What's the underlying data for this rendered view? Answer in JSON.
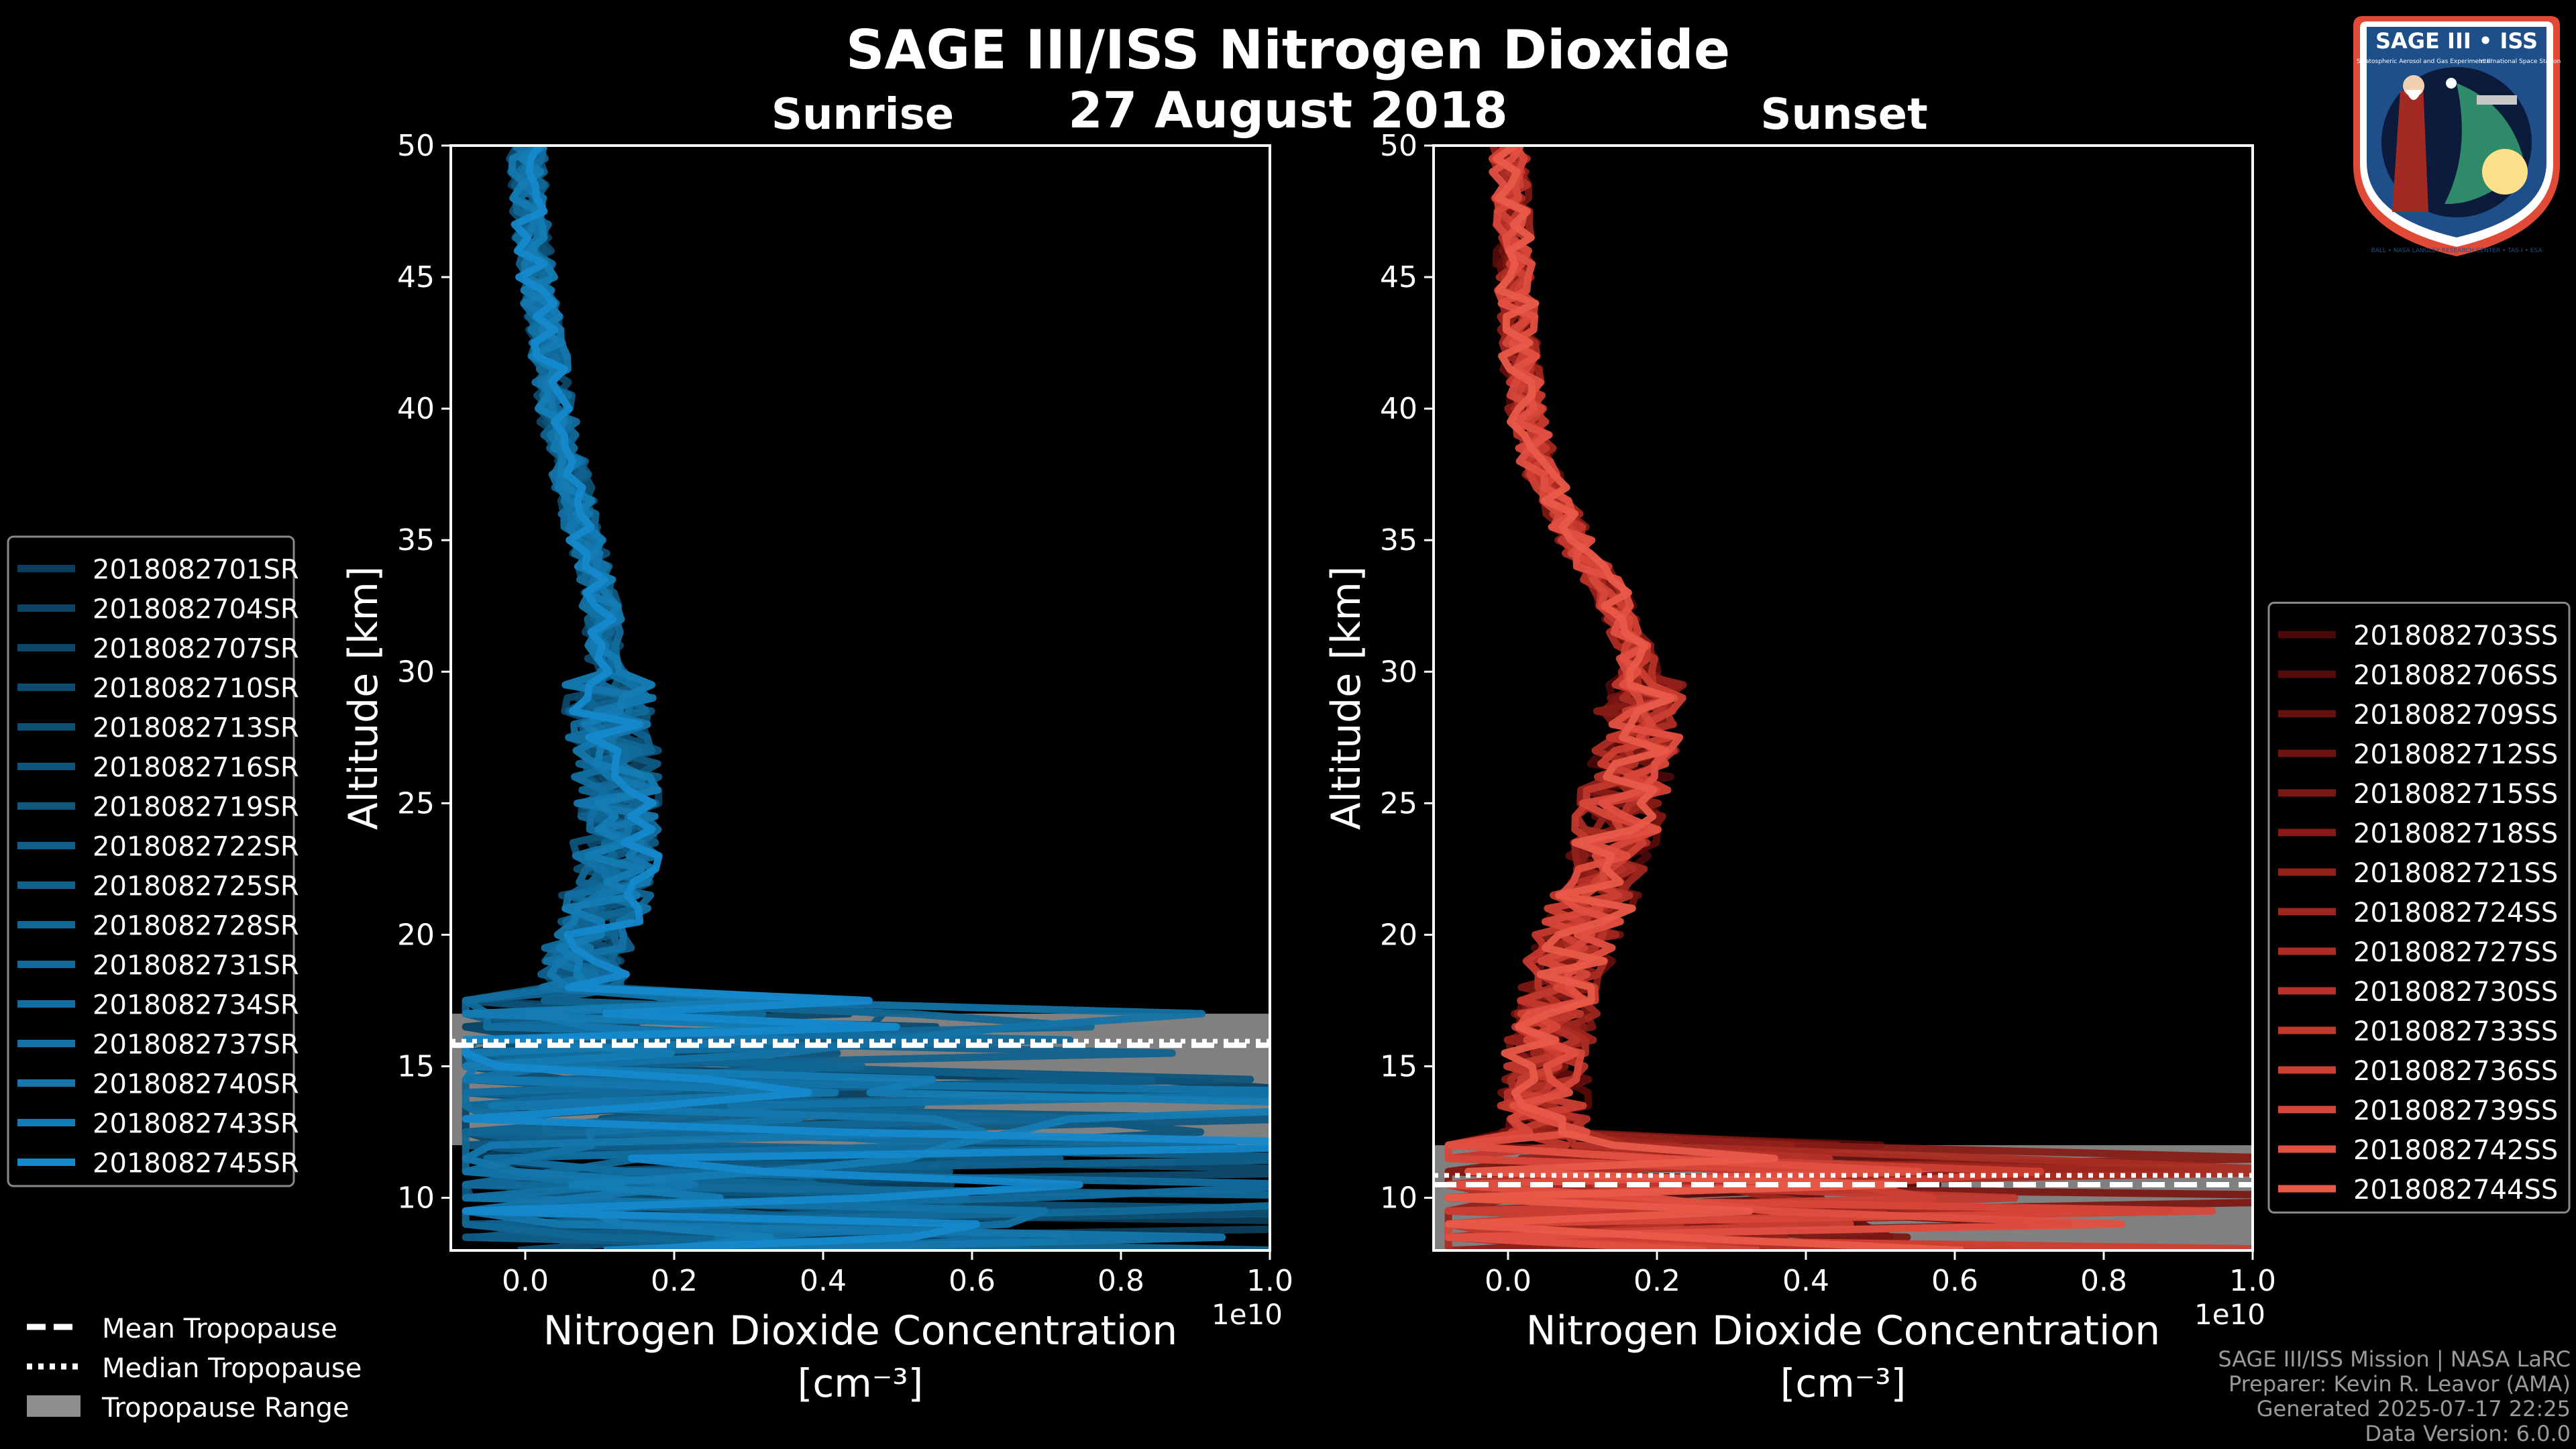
{
  "figure": {
    "title": "SAGE III/ISS Nitrogen Dioxide",
    "date": "27 August 2018"
  },
  "colors": {
    "sunrise_dark": "#0b3e5c",
    "sunrise_light": "#1589cc",
    "sunset_dark": "#4a0808",
    "sunset_light": "#e85a48",
    "tropopause_fill": "#8e8e8e"
  },
  "chart_data": [
    {
      "type": "line",
      "panel": "left",
      "subtitle": "Sunrise",
      "xlabel": "Nitrogen Dioxide Concentration",
      "xlabel_unit": "[cm⁻³]",
      "ylabel": "Altitude [km]",
      "x_offset_label": "1e10",
      "xlim": [
        -0.1,
        1.0
      ],
      "ylim": [
        8,
        50
      ],
      "xticks": [
        0.0,
        0.2,
        0.4,
        0.6,
        0.8,
        1.0
      ],
      "xtick_labels": [
        "0.0",
        "0.2",
        "0.4",
        "0.6",
        "0.8",
        "1.0"
      ],
      "yticks": [
        10,
        15,
        20,
        25,
        30,
        35,
        40,
        45,
        50
      ],
      "tropopause": {
        "mean_km": 15.8,
        "median_km": 15.8,
        "range_km": [
          12.0,
          17.0
        ]
      },
      "profile_altitude_km": [
        8.5,
        9,
        10,
        11,
        12,
        13,
        14,
        15,
        16,
        17,
        18,
        19,
        20,
        21,
        22,
        23,
        24,
        25,
        26,
        27,
        28,
        29,
        30,
        31,
        32,
        33,
        34,
        35,
        36,
        37,
        38,
        39,
        40,
        41,
        42,
        43,
        44,
        45,
        46,
        47,
        48,
        49,
        50
      ],
      "mean_profile_1e10": [
        0.3,
        0.25,
        0.2,
        0.18,
        0.16,
        0.14,
        0.12,
        0.1,
        0.08,
        0.09,
        0.1,
        0.1,
        0.11,
        0.13,
        0.14,
        0.15,
        0.15,
        0.15,
        0.15,
        0.15,
        0.14,
        0.14,
        0.14,
        0.13,
        0.13,
        0.12,
        0.11,
        0.1,
        0.09,
        0.08,
        0.07,
        0.06,
        0.05,
        0.045,
        0.04,
        0.03,
        0.025,
        0.02,
        0.015,
        0.01,
        0.008,
        0.005,
        0.004
      ],
      "series": [
        {
          "name": "2018082701SR",
          "color": "#0b3e5c"
        },
        {
          "name": "2018082704SR",
          "color": "#0c4262"
        },
        {
          "name": "2018082707SR",
          "color": "#0c4768"
        },
        {
          "name": "2018082710SR",
          "color": "#0d4b6f"
        },
        {
          "name": "2018082713SR",
          "color": "#0e5075"
        },
        {
          "name": "2018082716SR",
          "color": "#0e547b"
        },
        {
          "name": "2018082719SR",
          "color": "#0f5881"
        },
        {
          "name": "2018082722SR",
          "color": "#105d87"
        },
        {
          "name": "2018082725SR",
          "color": "#10618e"
        },
        {
          "name": "2018082728SR",
          "color": "#116694"
        },
        {
          "name": "2018082731SR",
          "color": "#126a9a"
        },
        {
          "name": "2018082734SR",
          "color": "#126ea0"
        },
        {
          "name": "2018082737SR",
          "color": "#1373a6"
        },
        {
          "name": "2018082740SR",
          "color": "#1477ad"
        },
        {
          "name": "2018082743SR",
          "color": "#147cb3"
        },
        {
          "name": "2018082745SR",
          "color": "#1589cc"
        }
      ]
    },
    {
      "type": "line",
      "panel": "right",
      "subtitle": "Sunset",
      "xlabel": "Nitrogen Dioxide Concentration",
      "xlabel_unit": "[cm⁻³]",
      "ylabel": "Altitude [km]",
      "x_offset_label": "1e10",
      "xlim": [
        -0.1,
        1.0
      ],
      "ylim": [
        8,
        50
      ],
      "xticks": [
        0.0,
        0.2,
        0.4,
        0.6,
        0.8,
        1.0
      ],
      "xtick_labels": [
        "0.0",
        "0.2",
        "0.4",
        "0.6",
        "0.8",
        "1.0"
      ],
      "yticks": [
        10,
        15,
        20,
        25,
        30,
        35,
        40,
        45,
        50
      ],
      "tropopause": {
        "mean_km": 10.5,
        "median_km": 10.7,
        "range_km": [
          8.0,
          12.0
        ]
      },
      "profile_altitude_km": [
        8.5,
        9,
        10,
        11,
        12,
        13,
        14,
        15,
        16,
        17,
        18,
        19,
        20,
        21,
        22,
        23,
        24,
        25,
        26,
        27,
        28,
        29,
        30,
        31,
        32,
        33,
        34,
        35,
        36,
        37,
        38,
        39,
        40,
        41,
        42,
        43,
        44,
        45,
        46,
        47,
        48,
        49,
        50
      ],
      "mean_profile_1e10": [
        0.15,
        0.12,
        0.1,
        0.08,
        0.07,
        0.06,
        0.06,
        0.06,
        0.07,
        0.08,
        0.09,
        0.1,
        0.12,
        0.14,
        0.15,
        0.17,
        0.18,
        0.19,
        0.2,
        0.21,
        0.22,
        0.22,
        0.22,
        0.21,
        0.19,
        0.17,
        0.14,
        0.11,
        0.09,
        0.07,
        0.05,
        0.04,
        0.03,
        0.025,
        0.02,
        0.018,
        0.015,
        0.012,
        0.01,
        0.008,
        0.006,
        0.004,
        0.003
      ],
      "series": [
        {
          "name": "2018082703SS",
          "color": "#4a0808"
        },
        {
          "name": "2018082706SS",
          "color": "#560b0a"
        },
        {
          "name": "2018082709SS",
          "color": "#620f0d"
        },
        {
          "name": "2018082712SS",
          "color": "#6e1310"
        },
        {
          "name": "2018082715SS",
          "color": "#7a1713"
        },
        {
          "name": "2018082718SS",
          "color": "#861b16"
        },
        {
          "name": "2018082721SS",
          "color": "#92211a"
        },
        {
          "name": "2018082724SS",
          "color": "#9e261e"
        },
        {
          "name": "2018082727SS",
          "color": "#aa2c23"
        },
        {
          "name": "2018082730SS",
          "color": "#b63228"
        },
        {
          "name": "2018082733SS",
          "color": "#c2382d"
        },
        {
          "name": "2018082736SS",
          "color": "#cc3f33"
        },
        {
          "name": "2018082739SS",
          "color": "#d6473a"
        },
        {
          "name": "2018082742SS",
          "color": "#e04f41"
        },
        {
          "name": "2018082744SS",
          "color": "#e85a48"
        }
      ]
    }
  ],
  "tropopause_legend": {
    "mean": "Mean Tropopause",
    "median": "Median Tropopause",
    "range": "Tropopause Range"
  },
  "credits": {
    "line1": "SAGE III/ISS Mission | NASA LaRC",
    "line2": "Preparer: Kevin R. Leavor (AMA)",
    "line3": "Generated 2025-07-17 22:25",
    "line4": "Data Version: 6.0.0"
  },
  "badge": {
    "title": "SAGE III • ISS",
    "tagline": "Stratospheric Aerosol and Gas Experiment III",
    "right_text": "International Space Station",
    "ring_text": "BALL • NASA LANGLEY RESEARCH CENTER • TAS-I • ESA"
  }
}
